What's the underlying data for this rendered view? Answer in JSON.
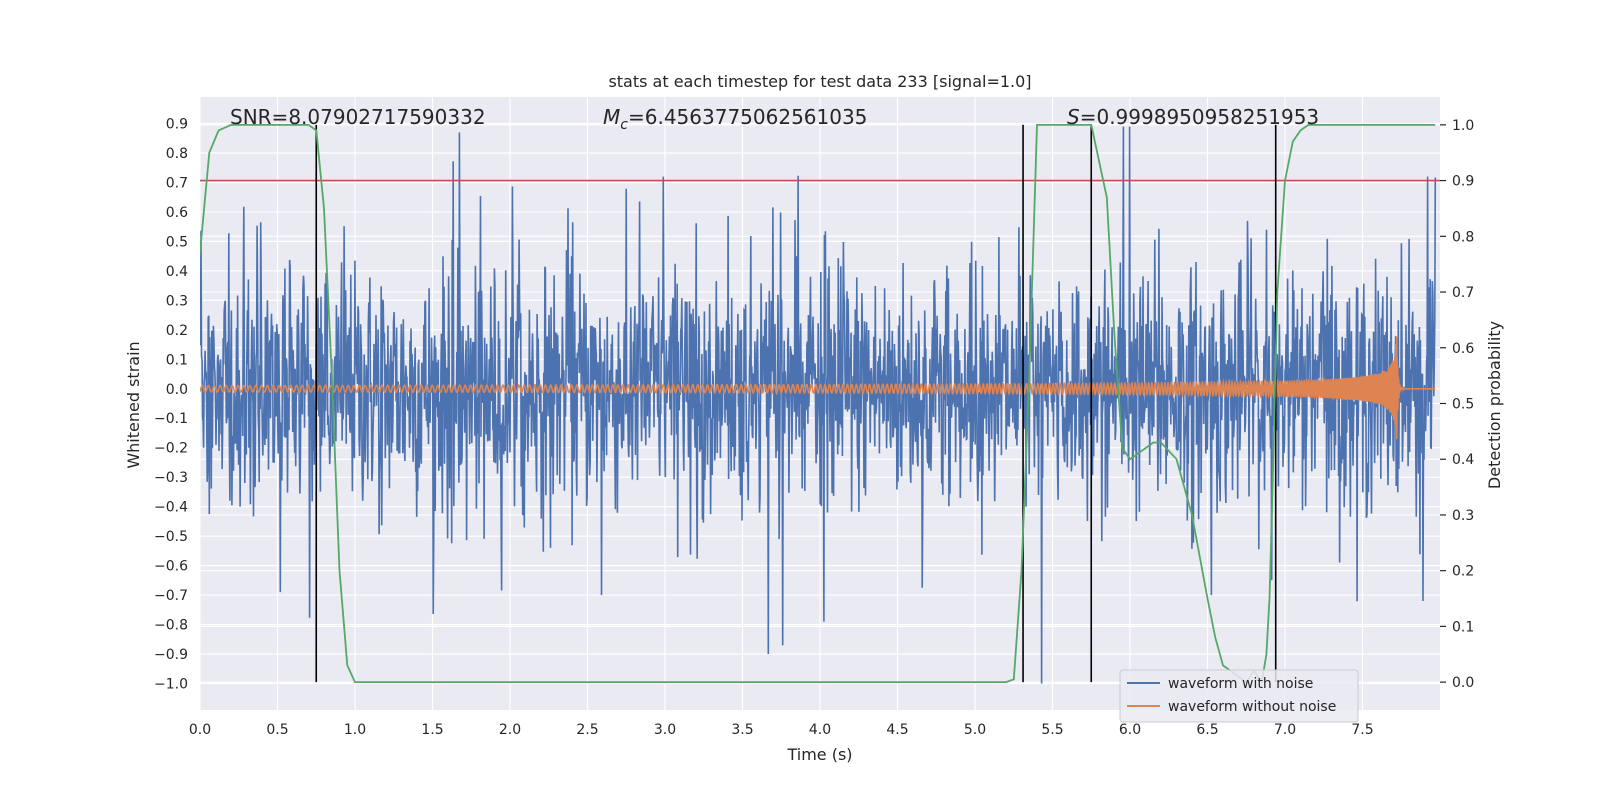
{
  "chart_data": {
    "type": "line",
    "title": "stats at each timestep for test data 233 [signal=1.0]",
    "xlabel": "Time (s)",
    "ylabel_left": "Whitened strain",
    "ylabel_right": "Detection probability",
    "xlim": [
      0.0,
      8.0
    ],
    "ylim_left": [
      -1.09,
      0.99
    ],
    "ylim_right": [
      -0.05,
      1.05
    ],
    "x_ticks": [
      "0.0",
      "0.5",
      "1.0",
      "1.5",
      "2.0",
      "2.5",
      "3.0",
      "3.5",
      "4.0",
      "4.5",
      "5.0",
      "5.5",
      "6.0",
      "6.5",
      "7.0",
      "7.5"
    ],
    "y_left_ticks": [
      "0.9",
      "0.8",
      "0.7",
      "0.6",
      "0.5",
      "0.4",
      "0.3",
      "0.2",
      "0.1",
      "0.0",
      "−0.1",
      "−0.2",
      "−0.3",
      "−0.4",
      "−0.5",
      "−0.6",
      "−0.7",
      "−0.8",
      "−0.9",
      "−1.0"
    ],
    "y_right_ticks": [
      "1.0",
      "0.9",
      "0.8",
      "0.7",
      "0.6",
      "0.5",
      "0.4",
      "0.3",
      "0.2",
      "0.1",
      "0.0"
    ],
    "annotations": {
      "snr_prefix": "SNR=",
      "snr": "8.07902717590332",
      "mc_symbol": "M",
      "mc_sub": "c",
      "mc": "6.4563775062561035",
      "s_symbol": "S",
      "s": "0.9998950958251953"
    },
    "threshold": {
      "value": 0.9,
      "axis": "right",
      "color": "#c44e52"
    },
    "vertical_lines": [
      0.75,
      5.31,
      5.75,
      6.94
    ],
    "grid": true,
    "legend_position": "lower-right",
    "series": [
      {
        "name": "waveform with noise",
        "axis": "left",
        "color": "#4c72b0",
        "description": "dense gaussian-like noise trace",
        "typical_amplitude": 0.2,
        "peaks": [
          {
            "t": 1.68,
            "v": 0.87
          },
          {
            "t": 6.02,
            "v": 0.89
          },
          {
            "t": 5.98,
            "v": 0.89
          },
          {
            "t": 3.68,
            "v": -0.9
          },
          {
            "t": 4.04,
            "v": -0.79
          },
          {
            "t": 5.45,
            "v": -1.0
          },
          {
            "t": 7.92,
            "v": -0.72
          },
          {
            "t": 0.52,
            "v": -0.69
          },
          {
            "t": 6.55,
            "v": -0.7
          },
          {
            "t": 2.6,
            "v": -0.7
          },
          {
            "t": 3.0,
            "v": 0.72
          },
          {
            "t": 7.95,
            "v": 0.72
          }
        ]
      },
      {
        "name": "waveform without noise",
        "axis": "left",
        "color": "#dd8452",
        "description": "chirp signal growing to merger",
        "merger_time": 7.72,
        "peak_amplitude": 0.21,
        "start_amplitude": 0.01
      },
      {
        "name": "",
        "axis": "right",
        "color": "#55a868",
        "x": [
          0.0,
          0.06,
          0.12,
          0.2,
          0.3,
          0.5,
          0.7,
          0.75,
          0.8,
          0.85,
          0.9,
          0.95,
          1.0,
          2.0,
          3.0,
          4.0,
          5.0,
          5.2,
          5.25,
          5.3,
          5.35,
          5.4,
          5.5,
          5.6,
          5.7,
          5.75,
          5.85,
          5.9,
          5.95,
          6.0,
          6.05,
          6.1,
          6.15,
          6.2,
          6.3,
          6.4,
          6.5,
          6.55,
          6.6,
          6.65,
          6.7,
          6.75,
          6.8,
          6.85,
          6.88,
          6.9,
          6.92,
          6.95,
          7.0,
          7.05,
          7.1,
          7.15,
          7.2,
          7.3,
          7.5,
          7.97
        ],
        "y": [
          0.77,
          0.95,
          0.99,
          1.0,
          1.0,
          1.0,
          1.0,
          0.99,
          0.85,
          0.55,
          0.2,
          0.03,
          0.0,
          0.0,
          0.0,
          0.0,
          0.0,
          0.0,
          0.005,
          0.2,
          0.55,
          1.0,
          1.0,
          1.0,
          1.0,
          1.0,
          0.87,
          0.62,
          0.42,
          0.4,
          0.41,
          0.42,
          0.43,
          0.43,
          0.4,
          0.3,
          0.15,
          0.08,
          0.03,
          0.02,
          0.01,
          0.0,
          0.02,
          0.0,
          0.05,
          0.15,
          0.35,
          0.7,
          0.9,
          0.97,
          0.99,
          1.0,
          1.0,
          1.0,
          1.0,
          1.0
        ]
      }
    ]
  }
}
